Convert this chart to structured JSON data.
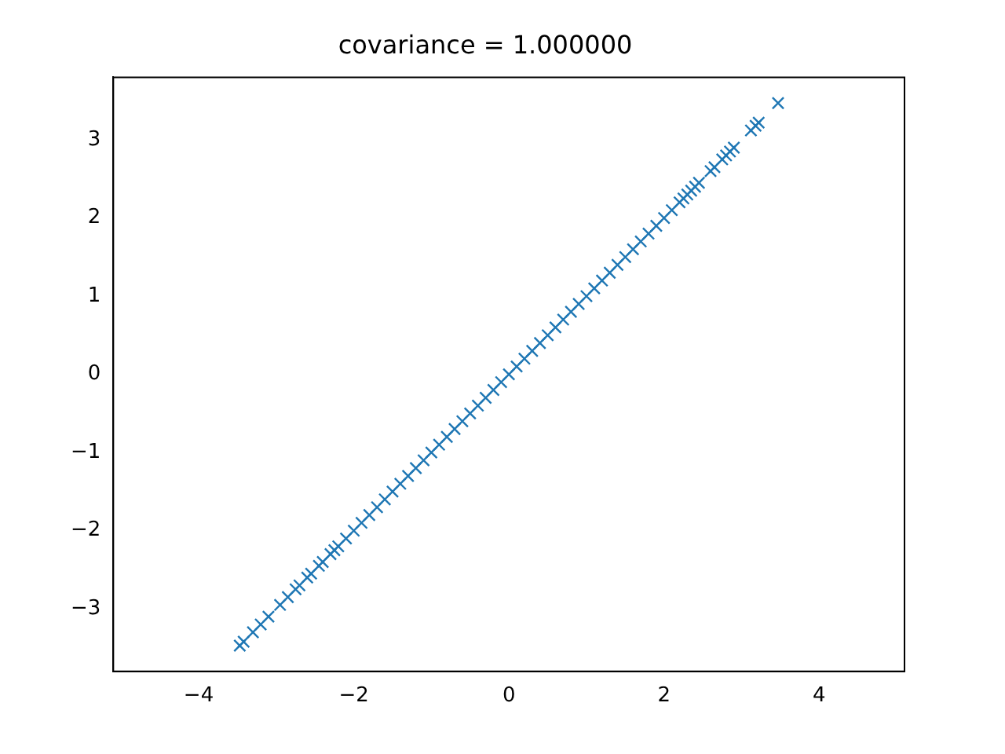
{
  "chart_data": {
    "type": "scatter",
    "title": "covariance = 1.000000",
    "x": [
      -3.47,
      -3.42,
      -3.3,
      -3.2,
      -3.1,
      -2.95,
      -2.85,
      -2.75,
      -2.7,
      -2.6,
      -2.55,
      -2.45,
      -2.4,
      -2.3,
      -2.25,
      -2.2,
      -2.1,
      -2.0,
      -1.9,
      -1.8,
      -1.7,
      -1.6,
      -1.5,
      -1.4,
      -1.3,
      -1.2,
      -1.1,
      -1.0,
      -0.9,
      -0.8,
      -0.7,
      -0.6,
      -0.5,
      -0.4,
      -0.3,
      -0.2,
      -0.1,
      0.0,
      0.1,
      0.2,
      0.3,
      0.4,
      0.5,
      0.6,
      0.7,
      0.8,
      0.9,
      1.0,
      1.1,
      1.2,
      1.3,
      1.4,
      1.5,
      1.6,
      1.7,
      1.8,
      1.9,
      2.0,
      2.1,
      2.2,
      2.25,
      2.3,
      2.35,
      2.4,
      2.45,
      2.6,
      2.65,
      2.75,
      2.8,
      2.85,
      2.9,
      3.12,
      3.18,
      3.22,
      3.47
    ],
    "series": [
      {
        "color": "#1f77b4",
        "values": [
          -3.47,
          -3.42,
          -3.3,
          -3.2,
          -3.1,
          -2.95,
          -2.85,
          -2.75,
          -2.7,
          -2.6,
          -2.55,
          -2.45,
          -2.4,
          -2.3,
          -2.25,
          -2.2,
          -2.1,
          -2.0,
          -1.9,
          -1.8,
          -1.7,
          -1.6,
          -1.5,
          -1.4,
          -1.3,
          -1.2,
          -1.1,
          -1.0,
          -0.9,
          -0.8,
          -0.7,
          -0.6,
          -0.5,
          -0.4,
          -0.3,
          -0.2,
          -0.1,
          0.0,
          0.1,
          0.2,
          0.3,
          0.4,
          0.5,
          0.6,
          0.7,
          0.8,
          0.9,
          1.0,
          1.1,
          1.2,
          1.3,
          1.4,
          1.5,
          1.6,
          1.7,
          1.8,
          1.9,
          2.0,
          2.1,
          2.2,
          2.25,
          2.3,
          2.35,
          2.4,
          2.45,
          2.6,
          2.65,
          2.75,
          2.8,
          2.85,
          2.9,
          3.12,
          3.18,
          3.22,
          3.47
        ]
      }
    ],
    "xlim": [
      -5.1,
      5.1
    ],
    "ylim": [
      -3.8,
      3.8
    ],
    "xticks": [
      -4,
      -2,
      0,
      2,
      4
    ],
    "yticks": [
      -3,
      -2,
      -1,
      0,
      1,
      2,
      3
    ],
    "marker": "cross",
    "grid": false,
    "legend": false
  }
}
